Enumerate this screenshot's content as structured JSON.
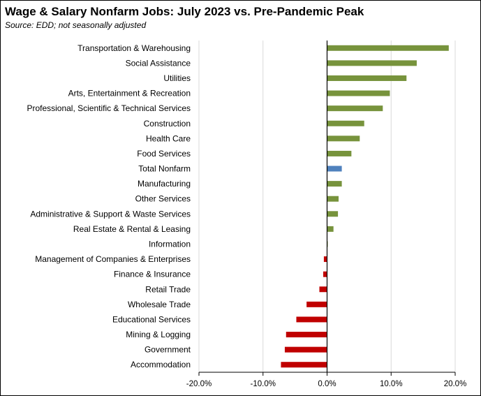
{
  "chart_data": {
    "type": "bar",
    "orientation": "horizontal",
    "title": "Wage & Salary Nonfarm Jobs:  July 2023 vs. Pre-Pandemic Peak",
    "subtitle": "Source:  EDD; not seasonally adjusted",
    "xlim": [
      -20,
      20
    ],
    "xticks": [
      -20,
      -10,
      0,
      10,
      20
    ],
    "xtick_labels": [
      "-20.0%",
      "-10.0%",
      "0.0%",
      "10.0%",
      "20.0%"
    ],
    "grid": "vertical",
    "categories": [
      "Transportation & Warehousing",
      "Social Assistance",
      "Utilities",
      "Arts, Entertainment & Recreation",
      "Professional, Scientific & Technical Services",
      "Construction",
      "Health Care",
      "Food Services",
      "Total Nonfarm",
      "Manufacturing",
      "Other Services",
      "Administrative & Support & Waste Services",
      "Real Estate & Rental & Leasing",
      "Information",
      "Management of Companies & Enterprises",
      "Finance & Insurance",
      "Retail Trade",
      "Wholesale Trade",
      "Educational Services",
      "Mining & Logging",
      "Government",
      "Accommodation"
    ],
    "values": [
      19.0,
      14.0,
      12.4,
      9.8,
      8.7,
      5.8,
      5.1,
      3.8,
      2.3,
      2.3,
      1.8,
      1.7,
      1.0,
      0.1,
      -0.5,
      -0.6,
      -1.2,
      -3.2,
      -4.8,
      -6.4,
      -6.6,
      -7.2
    ],
    "colors": {
      "positive": "#77933C",
      "negative": "#C00000",
      "total": "#4F81BD",
      "gridline": "#D9D9D9",
      "axis": "#000000"
    },
    "highlight_category": "Total Nonfarm"
  }
}
